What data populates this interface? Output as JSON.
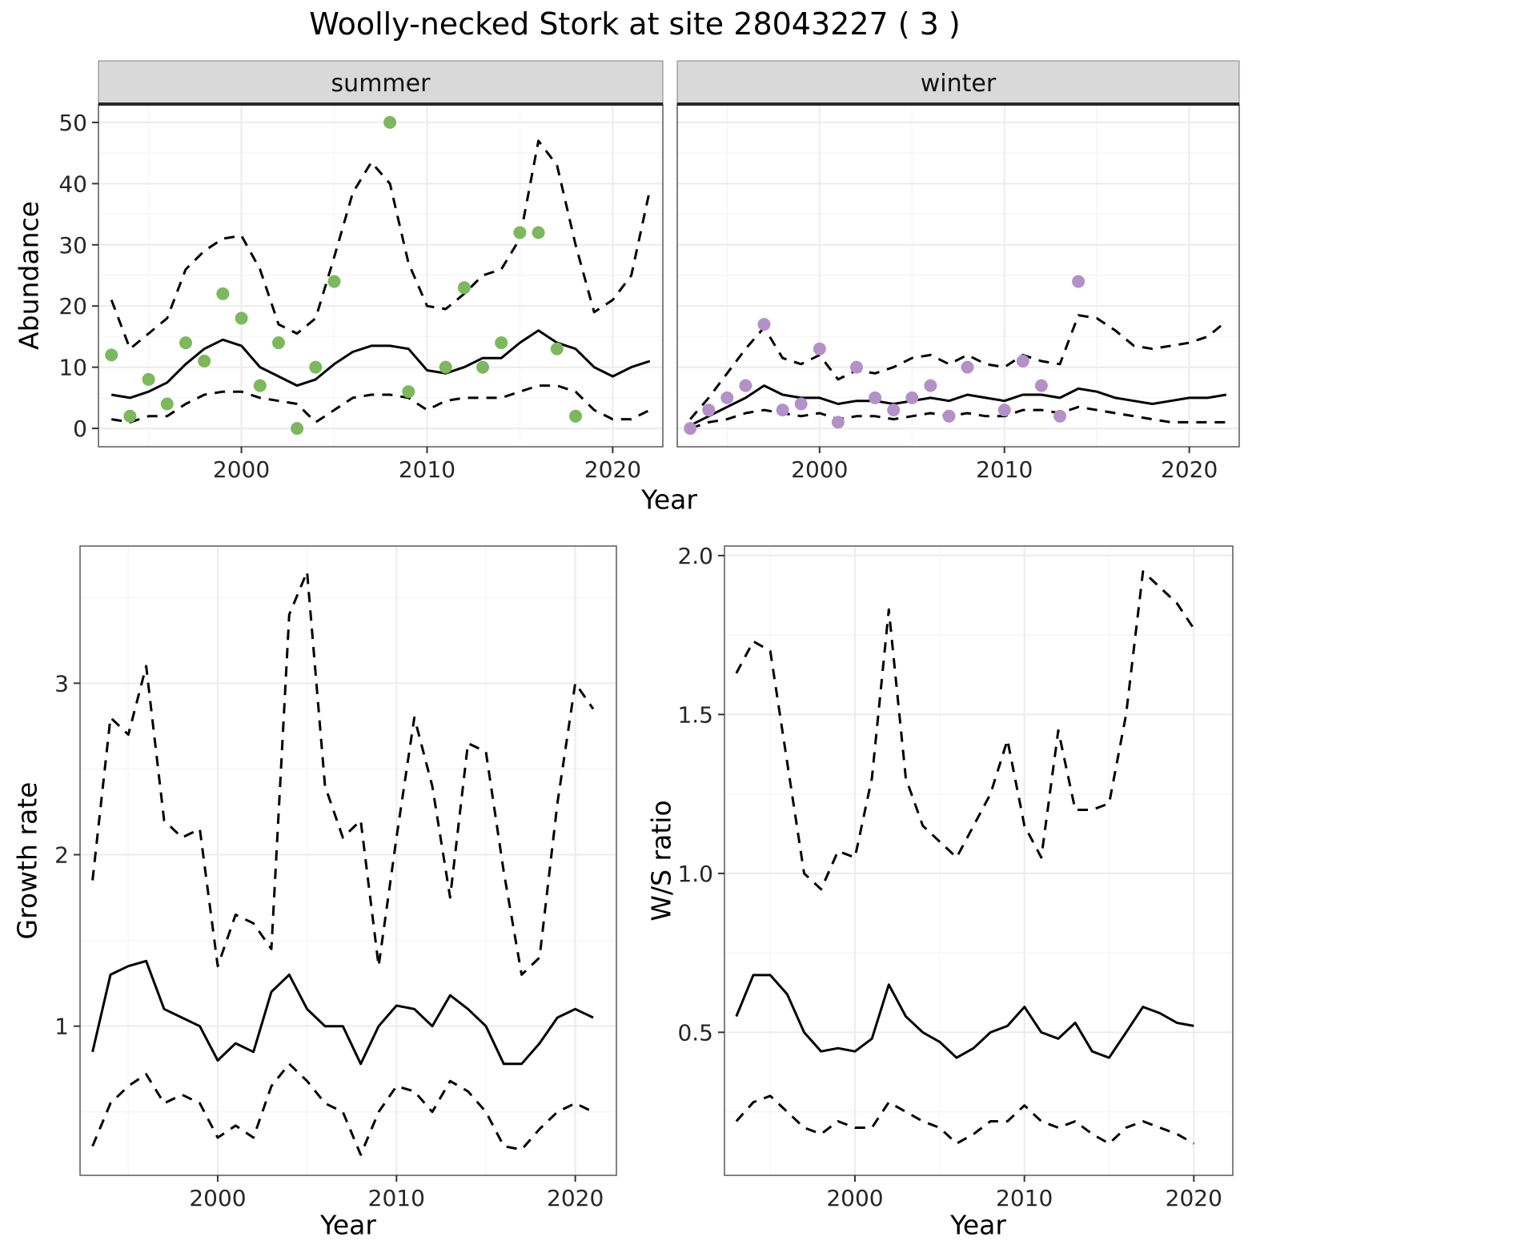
{
  "title": "Woolly-necked Stork at site 28043227 ( 3 )",
  "axis_labels": {
    "abundance": "Abundance",
    "year": "Year",
    "growth_rate": "Growth rate",
    "ws_ratio": "W/S ratio"
  },
  "colors": {
    "summer_points": "#7CB85C",
    "winter_points": "#B391C8",
    "line": "#000000",
    "strip_bg": "#D9D9D9",
    "strip_border": "#808080",
    "strip_underline": "#262626",
    "panel_border": "#595959",
    "grid_major": "#ECECEC",
    "grid_minor": "#F6F6F6",
    "tick_mark": "#333333"
  },
  "chart_data": [
    {
      "id": "abundance_summer",
      "type": "line",
      "facet_label": "summer",
      "xlabel": "Year",
      "ylabel": "Abundance",
      "xlim": [
        1992.3,
        2022.7
      ],
      "ylim": [
        -3,
        53
      ],
      "xticks": [
        2000,
        2010,
        2020
      ],
      "xtick_labels": [
        "2000",
        "2010",
        "2020"
      ],
      "yticks": [
        0,
        10,
        20,
        30,
        40,
        50
      ],
      "ytick_labels": [
        "0",
        "10",
        "20",
        "30",
        "40",
        "50"
      ],
      "grid": true,
      "x": [
        1993,
        1994,
        1995,
        1996,
        1997,
        1998,
        1999,
        2000,
        2001,
        2002,
        2003,
        2004,
        2005,
        2006,
        2007,
        2008,
        2009,
        2010,
        2011,
        2012,
        2013,
        2014,
        2015,
        2016,
        2017,
        2018,
        2019,
        2020,
        2021,
        2022
      ],
      "series": [
        {
          "name": "fit",
          "style": "solid",
          "color": "#000000",
          "values": [
            5.5,
            5,
            6,
            7.5,
            10.5,
            13,
            14.5,
            13.5,
            10,
            8.5,
            7,
            8,
            10.5,
            12.5,
            13.5,
            13.5,
            13,
            9.5,
            9,
            10,
            11.5,
            11.5,
            14,
            16,
            14,
            13,
            10,
            8.5,
            10,
            11
          ]
        },
        {
          "name": "upper-ci",
          "style": "dashed",
          "color": "#000000",
          "values": [
            21,
            13,
            15.5,
            18,
            26,
            29,
            31,
            31.5,
            26,
            17,
            15.5,
            18,
            28,
            38.5,
            43.5,
            40,
            27,
            20,
            19.5,
            22,
            25,
            26,
            31,
            47,
            43,
            30,
            19,
            21,
            25,
            39
          ]
        },
        {
          "name": "lower-ci",
          "style": "dashed",
          "color": "#000000",
          "values": [
            1.5,
            1,
            2,
            2,
            4,
            5.5,
            6,
            6,
            5,
            4.5,
            4,
            1,
            3,
            5,
            5.5,
            5.5,
            5,
            3,
            4.5,
            5,
            5,
            5,
            6,
            7,
            7,
            6,
            3,
            1.5,
            1.5,
            3
          ]
        }
      ],
      "points": {
        "name": "observed-summer",
        "color": "#7CB85C",
        "x": [
          1993,
          1994,
          1995,
          1996,
          1997,
          1998,
          1999,
          2000,
          2001,
          2002,
          2003,
          2004,
          2005,
          2008,
          2009,
          2011,
          2012,
          2013,
          2014,
          2015,
          2016,
          2017,
          2018
        ],
        "y": [
          12,
          2,
          8,
          4,
          14,
          11,
          22,
          18,
          7,
          14,
          0,
          10,
          24,
          50,
          6,
          10,
          23,
          10,
          14,
          32,
          32,
          13,
          2
        ]
      }
    },
    {
      "id": "abundance_winter",
      "type": "line",
      "facet_label": "winter",
      "xlabel": "Year",
      "ylabel": "Abundance",
      "xlim": [
        1992.3,
        2022.7
      ],
      "ylim": [
        -3,
        53
      ],
      "xticks": [
        2000,
        2010,
        2020
      ],
      "xtick_labels": [
        "2000",
        "2010",
        "2020"
      ],
      "yticks": [
        0,
        10,
        20,
        30,
        40,
        50
      ],
      "ytick_labels": [
        "0",
        "10",
        "20",
        "30",
        "40",
        "50"
      ],
      "grid": true,
      "x": [
        1993,
        1994,
        1995,
        1996,
        1997,
        1998,
        1999,
        2000,
        2001,
        2002,
        2003,
        2004,
        2005,
        2006,
        2007,
        2008,
        2009,
        2010,
        2011,
        2012,
        2013,
        2014,
        2015,
        2016,
        2017,
        2018,
        2019,
        2020,
        2021,
        2022
      ],
      "series": [
        {
          "name": "fit",
          "style": "solid",
          "color": "#000000",
          "values": [
            0.5,
            2,
            3.5,
            5,
            7,
            5.5,
            5,
            5,
            4,
            4.5,
            4.5,
            4,
            4.5,
            5,
            4.5,
            5.5,
            5,
            4.5,
            5.5,
            5.5,
            5,
            6.5,
            6,
            5,
            4.5,
            4,
            4.5,
            5,
            5,
            5.5
          ]
        },
        {
          "name": "upper-ci",
          "style": "dashed",
          "color": "#000000",
          "values": [
            1.5,
            5,
            9,
            13,
            16.5,
            11.5,
            10.5,
            12,
            8,
            9.5,
            9,
            10,
            11.5,
            12,
            10.5,
            12,
            10.5,
            10,
            12,
            11,
            10.5,
            18.5,
            18,
            16,
            13.5,
            13,
            13.5,
            14,
            15,
            17.5
          ]
        },
        {
          "name": "lower-ci",
          "style": "dashed",
          "color": "#000000",
          "values": [
            0,
            1,
            1.5,
            2.5,
            3,
            2.5,
            2,
            2.5,
            1.5,
            2,
            2,
            1.5,
            2,
            2.5,
            2,
            2.5,
            2,
            2,
            3,
            3,
            2.5,
            3.5,
            3,
            2.5,
            2,
            1.5,
            1,
            1,
            1,
            1
          ]
        }
      ],
      "points": {
        "name": "observed-winter",
        "color": "#B391C8",
        "x": [
          1993,
          1994,
          1995,
          1996,
          1997,
          1998,
          1999,
          2000,
          2001,
          2002,
          2003,
          2004,
          2005,
          2006,
          2007,
          2008,
          2010,
          2011,
          2012,
          2013,
          2014
        ],
        "y": [
          0,
          3,
          5,
          7,
          17,
          3,
          4,
          13,
          1,
          10,
          5,
          3,
          5,
          7,
          2,
          10,
          3,
          11,
          7,
          2,
          24
        ]
      }
    },
    {
      "id": "growth_rate",
      "type": "line",
      "facet_label": "",
      "xlabel": "Year",
      "ylabel": "Growth rate",
      "xlim": [
        1992.3,
        2022.3
      ],
      "ylim": [
        0.13,
        3.8
      ],
      "xticks": [
        2000,
        2010,
        2020
      ],
      "xtick_labels": [
        "2000",
        "2010",
        "2020"
      ],
      "yticks": [
        1,
        2,
        3
      ],
      "ytick_labels": [
        "1",
        "2",
        "3"
      ],
      "grid": true,
      "x": [
        1993,
        1994,
        1995,
        1996,
        1997,
        1998,
        1999,
        2000,
        2001,
        2002,
        2003,
        2004,
        2005,
        2006,
        2007,
        2008,
        2009,
        2010,
        2011,
        2012,
        2013,
        2014,
        2015,
        2016,
        2017,
        2018,
        2019,
        2020,
        2021
      ],
      "series": [
        {
          "name": "fit",
          "style": "solid",
          "color": "#000000",
          "values": [
            0.85,
            1.3,
            1.35,
            1.38,
            1.1,
            1.05,
            1.0,
            0.8,
            0.9,
            0.85,
            1.2,
            1.3,
            1.1,
            1.0,
            1.0,
            0.78,
            1.0,
            1.12,
            1.1,
            1.0,
            1.18,
            1.1,
            1.0,
            0.78,
            0.78,
            0.9,
            1.05,
            1.1,
            1.05
          ]
        },
        {
          "name": "upper-ci",
          "style": "dashed",
          "color": "#000000",
          "values": [
            1.85,
            2.8,
            2.7,
            3.1,
            2.2,
            2.1,
            2.15,
            1.35,
            1.65,
            1.6,
            1.45,
            3.4,
            3.65,
            2.4,
            2.1,
            2.2,
            1.35,
            2.1,
            2.8,
            2.4,
            1.75,
            2.65,
            2.6,
            1.9,
            1.3,
            1.4,
            2.3,
            3.0,
            2.85
          ]
        },
        {
          "name": "lower-ci",
          "style": "dashed",
          "color": "#000000",
          "values": [
            0.3,
            0.55,
            0.65,
            0.72,
            0.55,
            0.6,
            0.55,
            0.35,
            0.42,
            0.35,
            0.65,
            0.78,
            0.68,
            0.55,
            0.5,
            0.25,
            0.5,
            0.65,
            0.62,
            0.5,
            0.68,
            0.62,
            0.5,
            0.3,
            0.28,
            0.4,
            0.5,
            0.55,
            0.5
          ]
        }
      ],
      "points": null
    },
    {
      "id": "ws_ratio",
      "type": "line",
      "facet_label": "",
      "xlabel": "Year",
      "ylabel": "W/S ratio",
      "xlim": [
        1992.3,
        2022.3
      ],
      "ylim": [
        0.05,
        2.03
      ],
      "xticks": [
        2000,
        2010,
        2020
      ],
      "xtick_labels": [
        "2000",
        "2010",
        "2020"
      ],
      "yticks": [
        0.5,
        1.0,
        1.5,
        2.0
      ],
      "ytick_labels": [
        "0.5",
        "1.0",
        "1.5",
        "2.0"
      ],
      "grid": true,
      "x": [
        1993,
        1994,
        1995,
        1996,
        1997,
        1998,
        1999,
        2000,
        2001,
        2002,
        2003,
        2004,
        2005,
        2006,
        2007,
        2008,
        2009,
        2010,
        2011,
        2012,
        2013,
        2014,
        2015,
        2016,
        2017,
        2018,
        2019,
        2020
      ],
      "series": [
        {
          "name": "fit",
          "style": "solid",
          "color": "#000000",
          "values": [
            0.55,
            0.68,
            0.68,
            0.62,
            0.5,
            0.44,
            0.45,
            0.44,
            0.48,
            0.65,
            0.55,
            0.5,
            0.47,
            0.42,
            0.45,
            0.5,
            0.52,
            0.58,
            0.5,
            0.48,
            0.53,
            0.44,
            0.42,
            0.5,
            0.58,
            0.56,
            0.53,
            0.52
          ]
        },
        {
          "name": "upper-ci",
          "style": "dashed",
          "color": "#000000",
          "values": [
            1.63,
            1.73,
            1.7,
            1.35,
            1.0,
            0.95,
            1.07,
            1.05,
            1.3,
            1.83,
            1.3,
            1.15,
            1.1,
            1.05,
            1.15,
            1.25,
            1.42,
            1.15,
            1.05,
            1.45,
            1.2,
            1.2,
            1.22,
            1.5,
            1.95,
            1.9,
            1.85,
            1.77
          ]
        },
        {
          "name": "lower-ci",
          "style": "dashed",
          "color": "#000000",
          "values": [
            0.22,
            0.28,
            0.3,
            0.25,
            0.2,
            0.18,
            0.22,
            0.2,
            0.2,
            0.28,
            0.25,
            0.22,
            0.2,
            0.15,
            0.18,
            0.22,
            0.22,
            0.27,
            0.22,
            0.2,
            0.22,
            0.18,
            0.15,
            0.2,
            0.22,
            0.2,
            0.18,
            0.15
          ]
        }
      ],
      "points": null
    }
  ]
}
